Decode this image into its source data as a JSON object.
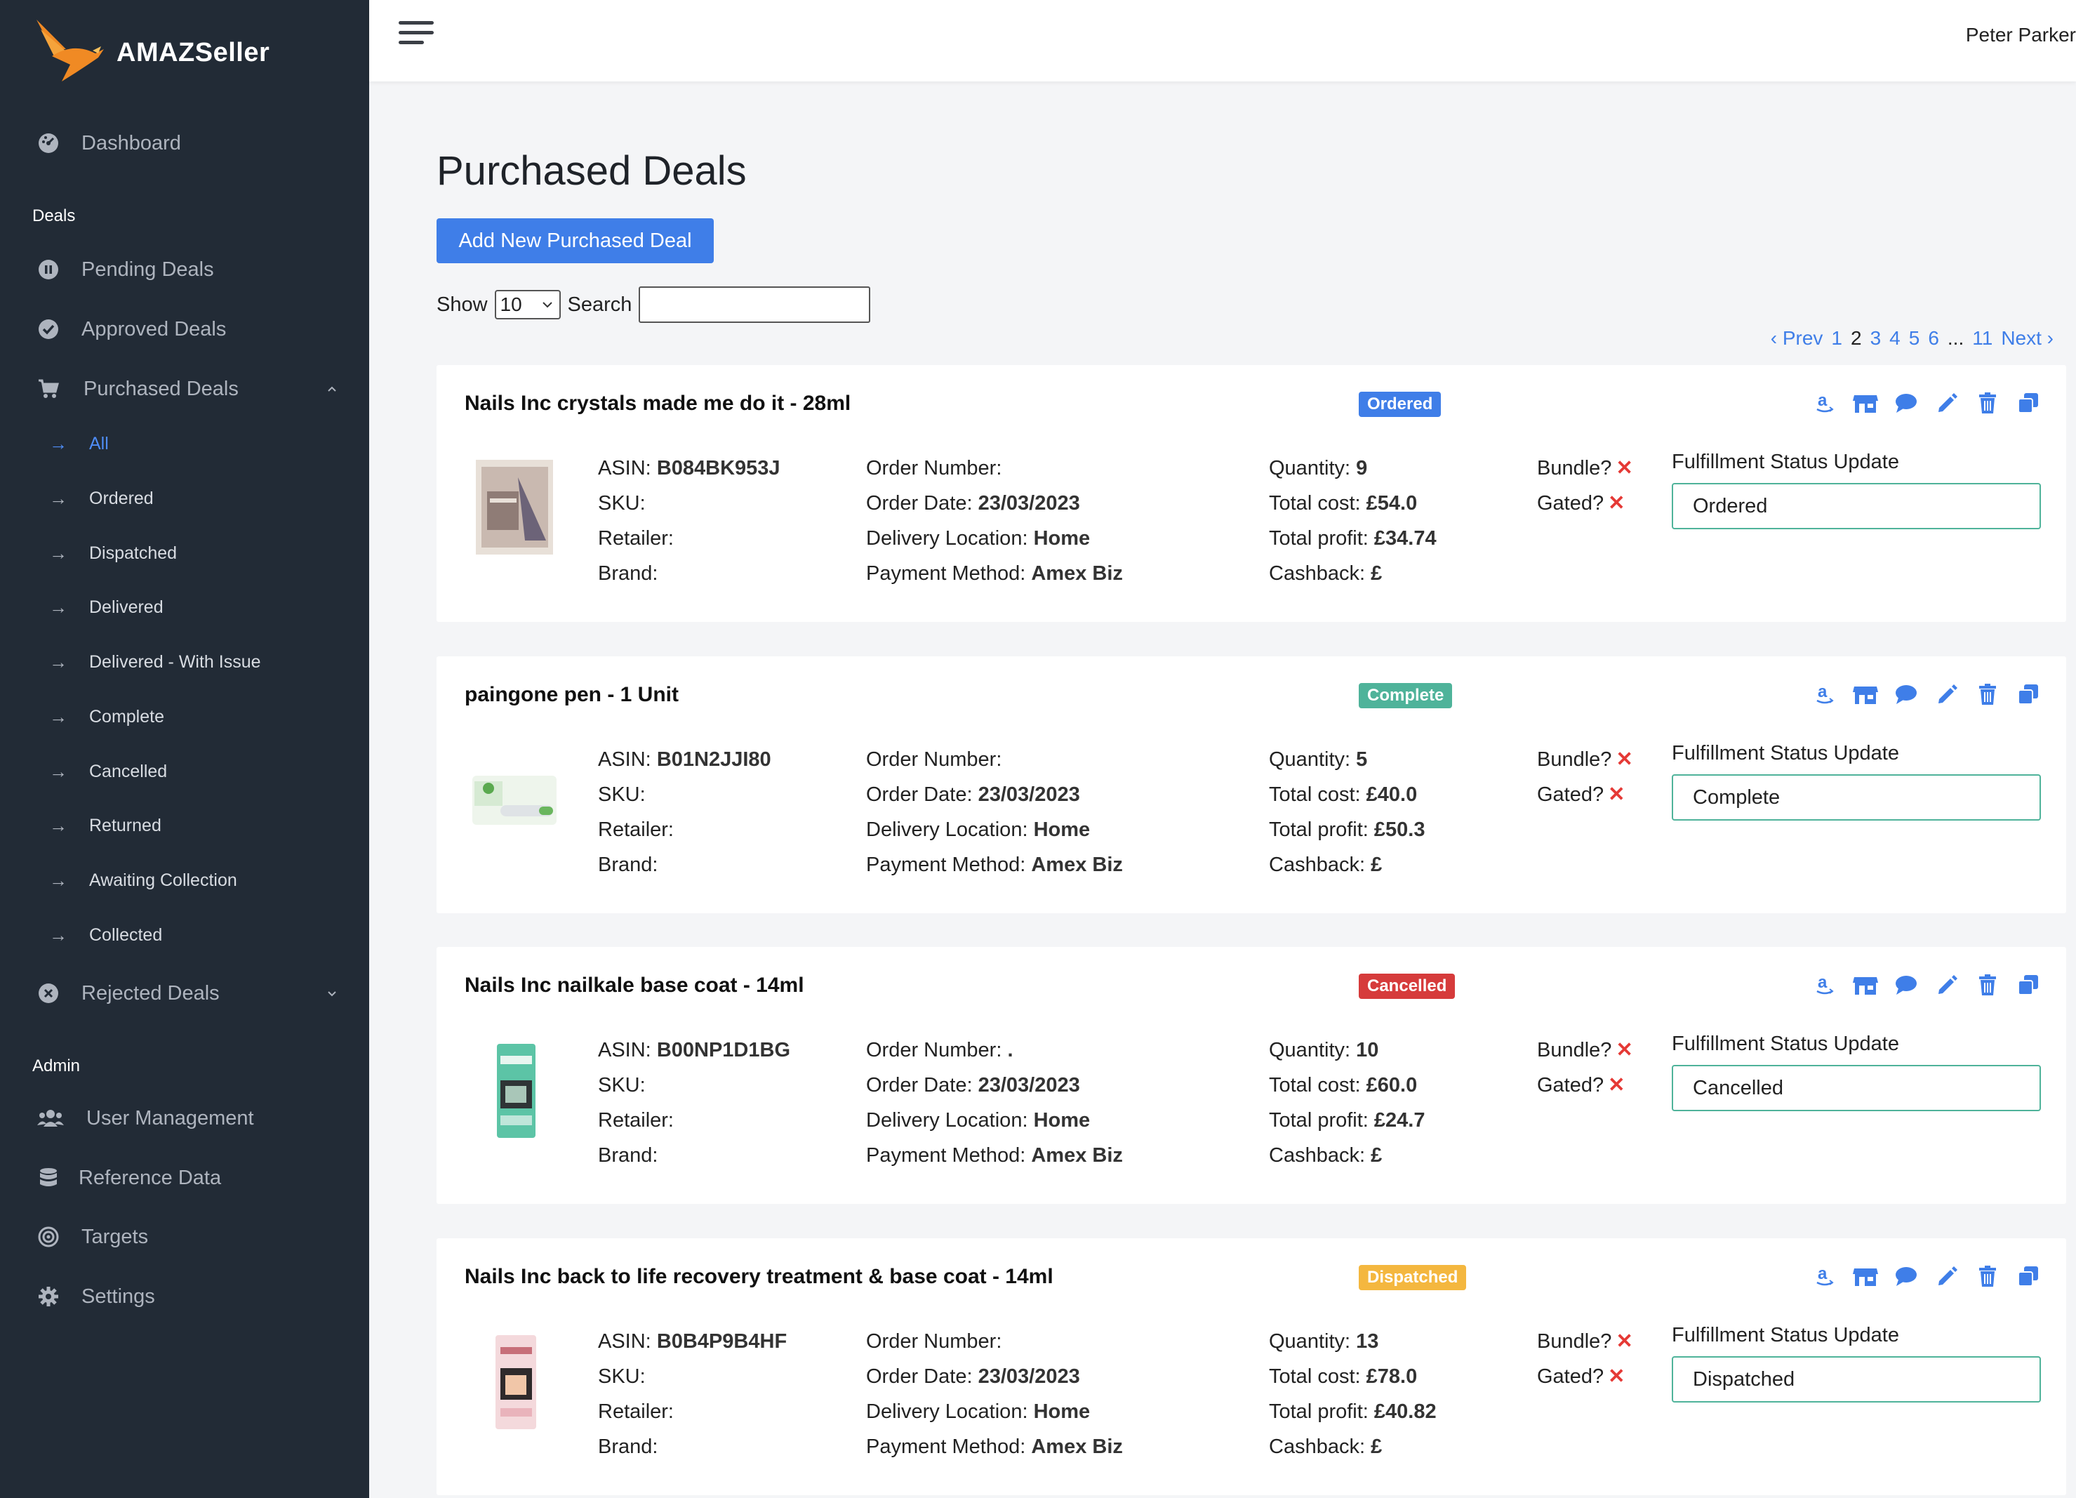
{
  "app": {
    "name": "AMAZSeller",
    "user": "Peter Parker"
  },
  "sidebar": {
    "dashboard": "Dashboard",
    "deals_section": "Deals",
    "pending": "Pending Deals",
    "approved": "Approved Deals",
    "purchased": "Purchased Deals",
    "sub_items": [
      {
        "label": "All",
        "active": true
      },
      {
        "label": "Ordered"
      },
      {
        "label": "Dispatched"
      },
      {
        "label": "Delivered"
      },
      {
        "label": "Delivered - With Issue"
      },
      {
        "label": "Complete"
      },
      {
        "label": "Cancelled"
      },
      {
        "label": "Returned"
      },
      {
        "label": "Awaiting Collection"
      },
      {
        "label": "Collected"
      }
    ],
    "rejected": "Rejected Deals",
    "admin_section": "Admin",
    "user_management": "User Management",
    "reference_data": "Reference Data",
    "targets": "Targets",
    "settings": "Settings"
  },
  "main": {
    "title": "Purchased Deals",
    "add_button": "Add New Purchased Deal",
    "show_label": "Show",
    "show_value": "10",
    "search_label": "Search",
    "search_value": "",
    "pager": {
      "prev": "‹ Prev",
      "pages": [
        "1",
        "2",
        "3",
        "4",
        "5",
        "6",
        "...",
        "11"
      ],
      "current": "2",
      "next": "Next ›"
    }
  },
  "labels": {
    "asin": "ASIN:",
    "sku": "SKU:",
    "retailer": "Retailer:",
    "brand": "Brand:",
    "order_number": "Order Number:",
    "order_date": "Order Date:",
    "delivery_location": "Delivery Location:",
    "payment_method": "Payment Method:",
    "quantity": "Quantity:",
    "total_cost": "Total cost:",
    "total_profit": "Total profit:",
    "cashback": "Cashback:",
    "bundle": "Bundle?",
    "gated": "Gated?",
    "x_mark": "✕",
    "fulfillment": "Fulfillment Status Update"
  },
  "deals": [
    {
      "title": "Nails Inc crystals made me do it - 28ml",
      "status": "Ordered",
      "status_color": "#3f7ee8",
      "asin": "B084BK953J",
      "sku": "",
      "retailer": "",
      "brand": "",
      "order_number": "",
      "order_date": "23/03/2023",
      "delivery_location": "Home",
      "payment_method": "Amex Biz",
      "quantity": "9",
      "total_cost": "£54.0",
      "total_profit": "£34.74",
      "cashback": "£",
      "fulfillment": "Ordered"
    },
    {
      "title": "paingone pen - 1 Unit",
      "status": "Complete",
      "status_color": "#4fb39a",
      "asin": "B01N2JJI80",
      "sku": "",
      "retailer": "",
      "brand": "",
      "order_number": "",
      "order_date": "23/03/2023",
      "delivery_location": "Home",
      "payment_method": "Amex Biz",
      "quantity": "5",
      "total_cost": "£40.0",
      "total_profit": "£50.3",
      "cashback": "£",
      "fulfillment": "Complete"
    },
    {
      "title": "Nails Inc nailkale base coat - 14ml",
      "status": "Cancelled",
      "status_color": "#d63b3b",
      "asin": "B00NP1D1BG",
      "sku": "",
      "retailer": "",
      "brand": "",
      "order_number": ".",
      "order_date": "23/03/2023",
      "delivery_location": "Home",
      "payment_method": "Amex Biz",
      "quantity": "10",
      "total_cost": "£60.0",
      "total_profit": "£24.7",
      "cashback": "£",
      "fulfillment": "Cancelled"
    },
    {
      "title": "Nails Inc back to life recovery treatment & base coat - 14ml",
      "status": "Dispatched",
      "status_color": "#f4b73f",
      "asin": "B0B4P9B4HF",
      "sku": "",
      "retailer": "",
      "brand": "",
      "order_number": "",
      "order_date": "23/03/2023",
      "delivery_location": "Home",
      "payment_method": "Amex Biz",
      "quantity": "13",
      "total_cost": "£78.0",
      "total_profit": "£40.82",
      "cashback": "£",
      "fulfillment": "Dispatched"
    }
  ]
}
